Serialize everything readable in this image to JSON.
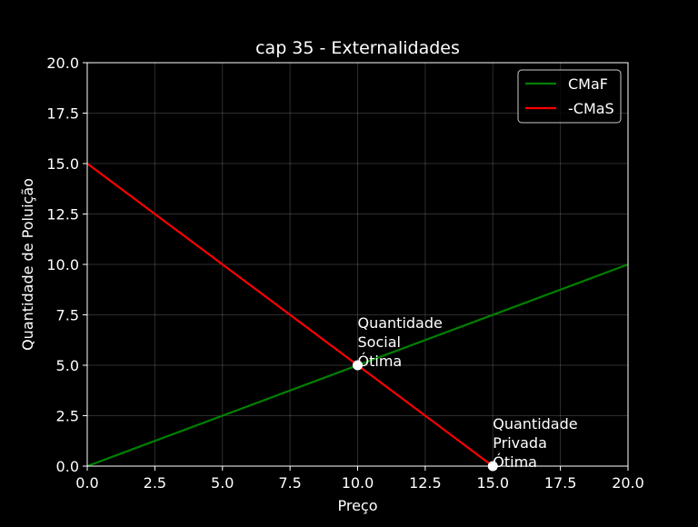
{
  "chart_data": {
    "type": "line",
    "title": "cap 35 - Externalidades",
    "xlabel": "Preço",
    "ylabel": "Quantidade de Poluição",
    "xlim": [
      0,
      20
    ],
    "ylim": [
      0,
      20
    ],
    "xticks": [
      "0.0",
      "2.5",
      "5.0",
      "7.5",
      "10.0",
      "12.5",
      "15.0",
      "17.5",
      "20.0"
    ],
    "yticks": [
      "0.0",
      "2.5",
      "5.0",
      "7.5",
      "10.0",
      "12.5",
      "15.0",
      "17.5",
      "20.0"
    ],
    "grid": true,
    "legend_position": "top-right",
    "background": "#000000",
    "series": [
      {
        "name": "CMaF",
        "color": "#008000",
        "x": [
          0,
          20
        ],
        "y": [
          0,
          10
        ]
      },
      {
        "name": "-CMaS",
        "color": "#ff0000",
        "x": [
          0,
          15
        ],
        "y": [
          15,
          0
        ]
      }
    ],
    "points": [
      {
        "x": 10,
        "y": 5,
        "label_lines": [
          "Quantidade",
          "Social",
          "Ótima"
        ]
      },
      {
        "x": 15,
        "y": 0,
        "label_lines": [
          "Quantidade",
          "Privada",
          "Ótima"
        ]
      }
    ]
  }
}
